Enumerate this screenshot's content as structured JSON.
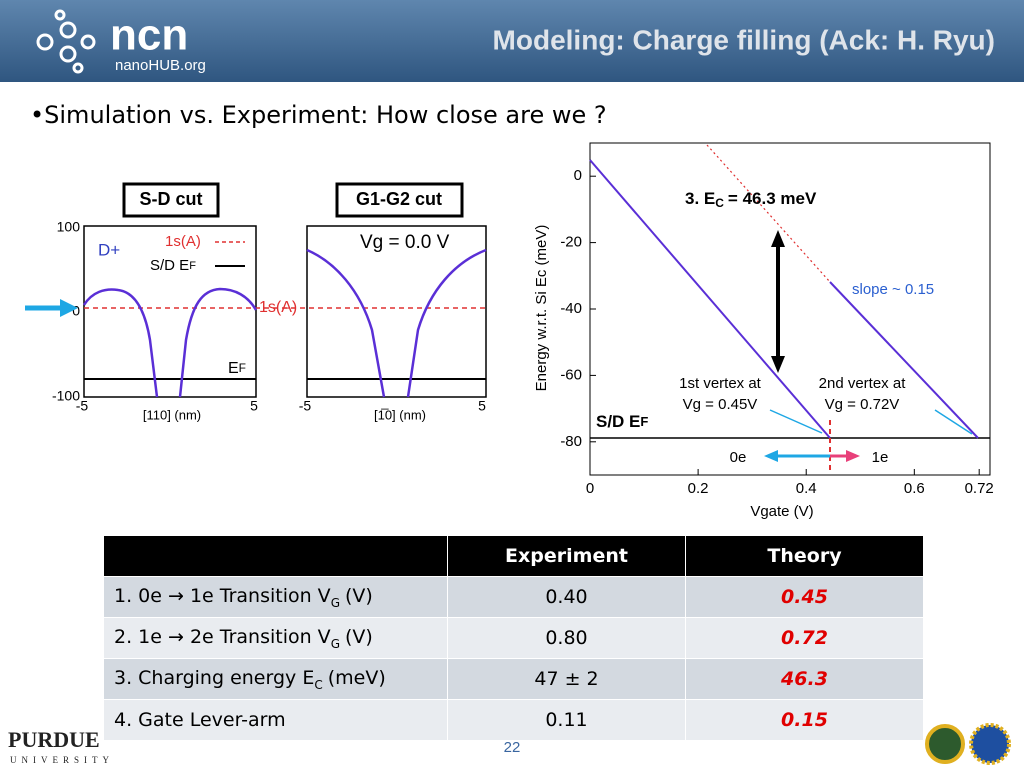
{
  "header": {
    "logo": "ncn",
    "logo_sub": "nanoHUB.org",
    "title": "Modeling: Charge filling (Ack: H. Ryu)"
  },
  "bullet": "Simulation vs. Experiment: How close are we ?",
  "left_figure": {
    "panels": [
      {
        "title": "S-D cut",
        "xlabel": "[110] (nm)",
        "xticks": [
          -5,
          5
        ]
      },
      {
        "title": "G1-G2 cut",
        "xlabel": "[1̅0] (nm)",
        "xticks": [
          -5,
          5
        ]
      }
    ],
    "yticks": [
      100,
      0,
      -100
    ],
    "donor": "D+",
    "legend_level": "1s(A)",
    "legend_ef": "S/D E",
    "legend_ef_sub": "F",
    "level_label": "1s(A)",
    "ef_label": "E",
    "ef_sub": "F",
    "vg_label": "Vg = 0.0 V"
  },
  "right_figure": {
    "ylabel": "Energy w.r.t. Si Ec (meV)",
    "xlabel": "Vgate (V)",
    "yticks": [
      0,
      -20,
      -40,
      -60,
      -80
    ],
    "xticks": [
      0,
      0.2,
      0.4,
      0.6,
      0.72
    ],
    "xlim": [
      0,
      0.74
    ],
    "ylim": [
      -90,
      10
    ],
    "ec_label": "3. E",
    "ec_sub": "C",
    "ec_value": "= 46.3 meV",
    "slope": "slope ~ 0.15",
    "vertex1": [
      "1st vertex at",
      "Vg = 0.45V"
    ],
    "vertex2": [
      "2nd vertex at",
      "Vg = 0.72V"
    ],
    "ef_label": "S/D E",
    "ef_sub": "F",
    "state0": "0e",
    "state1": "1e"
  },
  "table": {
    "header": [
      "Experiment",
      "Theory"
    ],
    "rows": [
      {
        "label": "1. 0e → 1e Transition V",
        "sub": "G",
        "unit": "(V)",
        "experiment": "0.40",
        "theory": "0.45"
      },
      {
        "label": "2. 1e → 2e Transition V",
        "sub": "G",
        "unit": "(V)",
        "experiment": "0.80",
        "theory": "0.72"
      },
      {
        "label": "3. Charging energy E",
        "sub": "C",
        "unit": "(meV)",
        "experiment": "47 ± 2",
        "theory": "46.3"
      },
      {
        "label": "4. Gate Lever-arm",
        "experiment": "0.11",
        "theory": "0.15"
      }
    ]
  },
  "footer": {
    "page": "22",
    "university": "PURDUE",
    "university_sub": "UNIVERSITY"
  }
}
